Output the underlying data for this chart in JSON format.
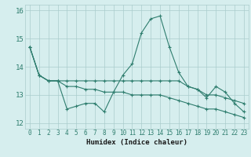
{
  "x": [
    0,
    1,
    2,
    3,
    4,
    5,
    6,
    7,
    8,
    9,
    10,
    11,
    12,
    13,
    14,
    15,
    16,
    17,
    18,
    19,
    20,
    21,
    22,
    23
  ],
  "line1": [
    14.7,
    13.7,
    13.5,
    13.5,
    12.5,
    12.6,
    12.7,
    12.7,
    12.4,
    13.1,
    13.7,
    14.1,
    15.2,
    15.7,
    15.8,
    14.7,
    13.8,
    13.3,
    13.2,
    12.9,
    13.3,
    13.1,
    12.7,
    12.4
  ],
  "line2": [
    14.7,
    13.7,
    13.5,
    13.5,
    13.5,
    13.5,
    13.5,
    13.5,
    13.5,
    13.5,
    13.5,
    13.5,
    13.5,
    13.5,
    13.5,
    13.5,
    13.5,
    13.3,
    13.2,
    13.0,
    13.0,
    12.9,
    12.8,
    12.7
  ],
  "line3": [
    14.7,
    13.7,
    13.5,
    13.5,
    13.3,
    13.3,
    13.2,
    13.2,
    13.1,
    13.1,
    13.1,
    13.0,
    13.0,
    13.0,
    13.0,
    12.9,
    12.8,
    12.7,
    12.6,
    12.5,
    12.5,
    12.4,
    12.3,
    12.2
  ],
  "line_color": "#2e7d6e",
  "bg_color": "#d6eeee",
  "grid_color": "#aacccc",
  "xlabel": "Humidex (Indice chaleur)",
  "ylim": [
    11.8,
    16.2
  ],
  "xlim": [
    -0.5,
    23.5
  ],
  "yticks": [
    12,
    13,
    14,
    15,
    16
  ],
  "xticks": [
    0,
    1,
    2,
    3,
    4,
    5,
    6,
    7,
    8,
    9,
    10,
    11,
    12,
    13,
    14,
    15,
    16,
    17,
    18,
    19,
    20,
    21,
    22,
    23
  ],
  "xtick_labels": [
    "0",
    "1",
    "2",
    "3",
    "4",
    "5",
    "6",
    "7",
    "8",
    "9",
    "10",
    "11",
    "12",
    "13",
    "14",
    "15",
    "16",
    "17",
    "18",
    "19",
    "20",
    "21",
    "22",
    "23"
  ]
}
